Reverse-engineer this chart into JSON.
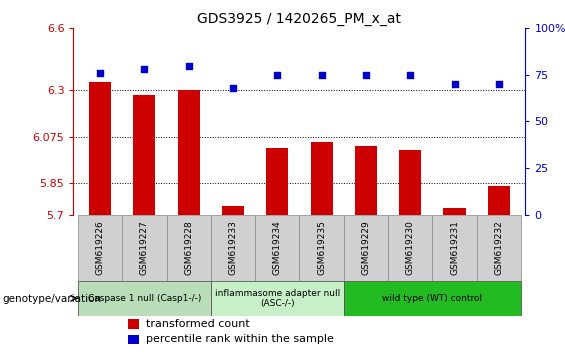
{
  "title": "GDS3925 / 1420265_PM_x_at",
  "samples": [
    "GSM619226",
    "GSM619227",
    "GSM619228",
    "GSM619233",
    "GSM619234",
    "GSM619235",
    "GSM619229",
    "GSM619230",
    "GSM619231",
    "GSM619232"
  ],
  "bar_values": [
    6.34,
    6.28,
    6.3,
    5.74,
    6.02,
    6.05,
    6.03,
    6.01,
    5.73,
    5.84
  ],
  "dot_values": [
    76,
    78,
    80,
    68,
    75,
    75,
    75,
    75,
    70,
    70
  ],
  "ylim": [
    5.7,
    6.6
  ],
  "yticks": [
    5.7,
    5.85,
    6.075,
    6.3,
    6.6
  ],
  "ytick_labels": [
    "5.7",
    "5.85",
    "6.075",
    "6.3",
    "6.6"
  ],
  "y2lim": [
    0,
    100
  ],
  "y2ticks": [
    0,
    25,
    50,
    75,
    100
  ],
  "y2tick_labels": [
    "0",
    "25",
    "50",
    "75",
    "100%"
  ],
  "grid_yticks": [
    5.85,
    6.075,
    6.3
  ],
  "bar_color": "#cc0000",
  "dot_color": "#0000cc",
  "bar_width": 0.5,
  "groups": [
    {
      "label": "Caspase 1 null (Casp1-/-)",
      "start": 0,
      "end": 3,
      "color": "#b8ddb8"
    },
    {
      "label": "inflammasome adapter null\n(ASC-/-)",
      "start": 3,
      "end": 6,
      "color": "#c8f0c8"
    },
    {
      "label": "wild type (WT) control",
      "start": 6,
      "end": 10,
      "color": "#22bb22"
    }
  ],
  "xlabel_genotype": "genotype/variation",
  "legend_bar_label": "transformed count",
  "legend_dot_label": "percentile rank within the sample",
  "tick_label_color_left": "#cc0000",
  "tick_label_color_right": "#0000cc",
  "sample_box_color": "#d0d0d0",
  "sample_box_edge": "#888888"
}
